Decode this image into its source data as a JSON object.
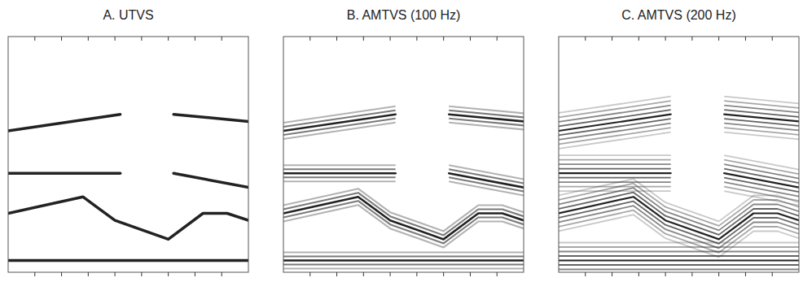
{
  "chart_data": [
    {
      "type": "line",
      "title": "A. UTVS",
      "color": "#222222",
      "grid": false,
      "tick_labels": false,
      "xlim": [
        0,
        9
      ],
      "ylim": [
        0,
        10
      ],
      "xticks": [
        1,
        2,
        3,
        4,
        5,
        6,
        7,
        8
      ],
      "series": [
        {
          "x": [
            0,
            4.2,
            5.1,
            6.2,
            9
          ],
          "values": [
            6.0,
            6.7,
            null,
            6.7,
            6.4
          ]
        },
        {
          "x": [
            0,
            4.2,
            5.1,
            6.2,
            9
          ],
          "values": [
            4.2,
            4.2,
            null,
            4.2,
            3.6
          ]
        },
        {
          "x": [
            0,
            2.8,
            4.0,
            6.0,
            7.3,
            8.2,
            9
          ],
          "values": [
            2.5,
            3.2,
            2.2,
            1.4,
            2.5,
            2.5,
            2.2
          ]
        },
        {
          "x": [
            0,
            9
          ],
          "values": [
            0.5,
            0.5
          ]
        }
      ]
    },
    {
      "type": "line",
      "title": "B. AMTVS (100 Hz)",
      "color": "#222222",
      "grid": false,
      "tick_labels": false,
      "xlim": [
        0,
        9
      ],
      "ylim": [
        0,
        10
      ],
      "xticks": [
        1,
        2,
        3,
        4,
        5,
        6,
        7,
        8
      ],
      "series": [
        {
          "x": [
            0,
            4.2,
            5.1,
            6.2,
            9
          ],
          "values": [
            6.0,
            6.7,
            null,
            6.7,
            6.4
          ]
        },
        {
          "x": [
            0,
            4.2,
            5.1,
            6.2,
            9
          ],
          "values": [
            4.2,
            4.2,
            null,
            4.2,
            3.6
          ]
        },
        {
          "x": [
            0,
            2.8,
            4.0,
            6.0,
            7.3,
            8.2,
            9
          ],
          "values": [
            2.5,
            3.2,
            2.2,
            1.4,
            2.5,
            2.5,
            2.2
          ]
        },
        {
          "x": [
            0,
            9
          ],
          "values": [
            0.5,
            0.5
          ]
        }
      ]
    },
    {
      "type": "line",
      "title": "C. AMTVS (200 Hz)",
      "color": "#222222",
      "grid": false,
      "tick_labels": false,
      "xlim": [
        0,
        9
      ],
      "ylim": [
        0,
        10
      ],
      "xticks": [
        1,
        2,
        3,
        4,
        5,
        6,
        7,
        8
      ],
      "series": [
        {
          "x": [
            0,
            4.2,
            5.1,
            6.2,
            9
          ],
          "values": [
            6.0,
            6.7,
            null,
            6.7,
            6.4
          ]
        },
        {
          "x": [
            0,
            4.2,
            5.1,
            6.2,
            9
          ],
          "values": [
            4.2,
            4.2,
            null,
            4.2,
            3.6
          ]
        },
        {
          "x": [
            0,
            2.8,
            4.0,
            6.0,
            7.3,
            8.2,
            9
          ],
          "values": [
            2.5,
            3.2,
            2.2,
            1.4,
            2.5,
            2.5,
            2.2
          ]
        },
        {
          "x": [
            0,
            9
          ],
          "values": [
            0.5,
            0.5
          ]
        }
      ]
    }
  ]
}
